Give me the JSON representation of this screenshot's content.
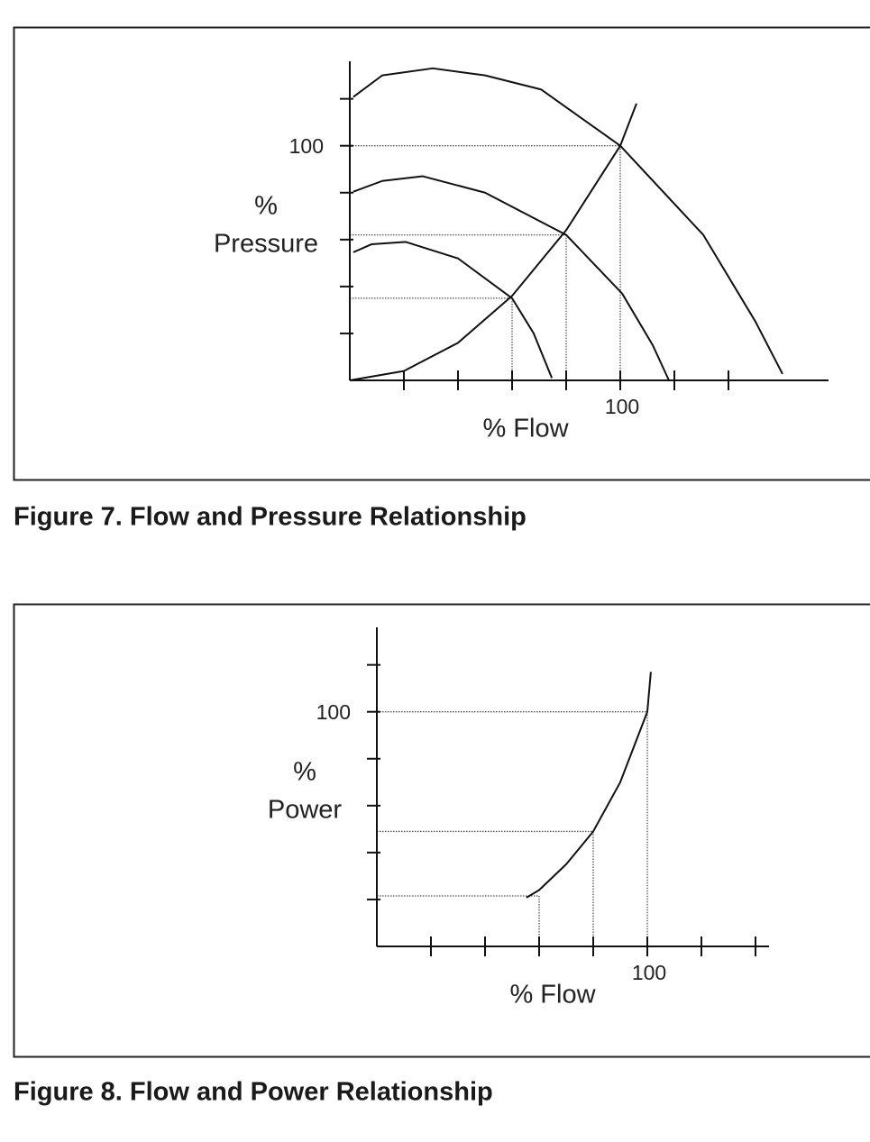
{
  "chart_data": [
    {
      "type": "line",
      "title": "Figure 7. Flow and Pressure Relationship",
      "xlabel": "% Flow",
      "ylabel_lines": [
        "%",
        "Pressure"
      ],
      "xlim": [
        0,
        177
      ],
      "ylim": [
        0,
        136
      ],
      "xticks": [
        100
      ],
      "yticks": [
        100
      ],
      "x_minor_ticks": [
        20,
        40,
        60,
        80,
        120,
        140
      ],
      "y_minor_ticks": [
        20,
        40,
        60,
        80,
        120
      ],
      "color": "#111111",
      "series": [
        {
          "x": [
            1.3,
            12,
            30.7,
            50,
            70.7,
            100,
            130.7,
            150,
            160
          ],
          "values": [
            120.8,
            130,
            133,
            130,
            124,
            100,
            62,
            25,
            2.7
          ]
        },
        {
          "x": [
            1.3,
            12,
            27,
            50,
            80,
            100.7,
            112,
            118
          ],
          "values": [
            80.4,
            85,
            87,
            80,
            62,
            37,
            15,
            0
          ]
        },
        {
          "x": [
            1.3,
            8,
            20.7,
            40,
            60,
            68,
            74.7
          ],
          "values": [
            54.6,
            58,
            59,
            52,
            35,
            20,
            1
          ]
        },
        {
          "x": [
            0,
            20,
            40,
            60,
            80,
            100,
            106
          ],
          "values": [
            0,
            4,
            16,
            36,
            64,
            100,
            118
          ]
        }
      ],
      "guides": [
        {
          "x": 60,
          "y": 35
        },
        {
          "x": 80,
          "y": 62
        },
        {
          "x": 100,
          "y": 100
        }
      ]
    },
    {
      "type": "line",
      "title": "Figure 8. Flow and Power Relationship",
      "xlabel": "% Flow",
      "ylabel_lines": [
        "%",
        "Power"
      ],
      "xlim": [
        0,
        145
      ],
      "ylim": [
        0,
        136
      ],
      "xticks": [
        100
      ],
      "yticks": [
        100
      ],
      "x_minor_ticks": [
        20,
        40,
        60,
        80,
        120,
        140
      ],
      "y_minor_ticks": [
        20,
        40,
        60,
        80,
        120
      ],
      "color": "#111111",
      "series": [
        {
          "x": [
            55.3,
            60,
            70,
            80,
            90,
            100,
            101.3
          ],
          "values": [
            20.8,
            24,
            35,
            49,
            70,
            100,
            117
          ]
        }
      ],
      "guides": [
        {
          "x": 60,
          "y": 21.5
        },
        {
          "x": 80,
          "y": 49
        },
        {
          "x": 100,
          "y": 100
        }
      ]
    }
  ]
}
